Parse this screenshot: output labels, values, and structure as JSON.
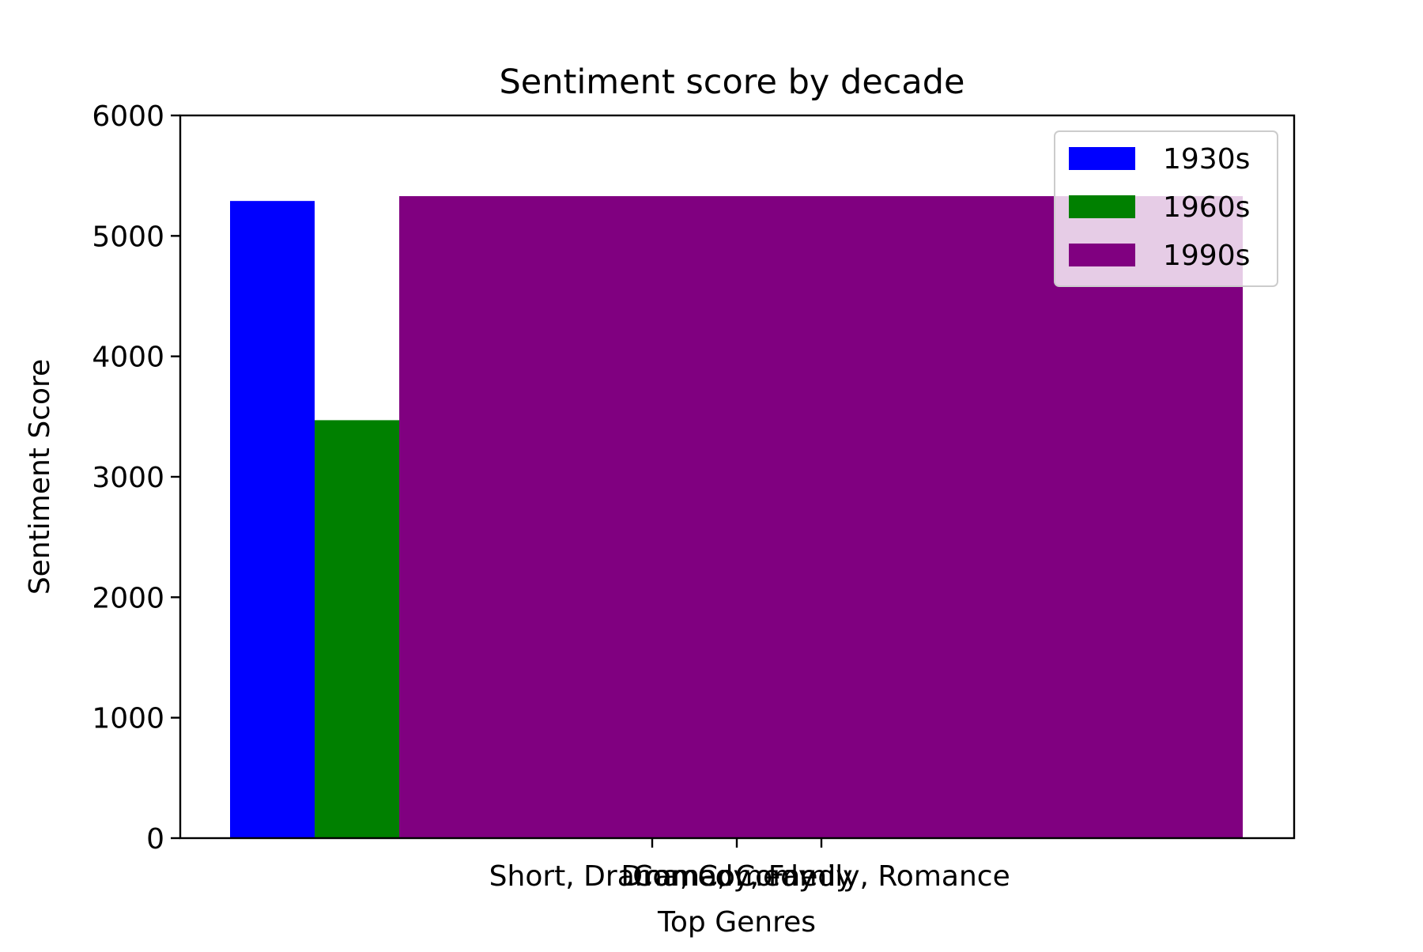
{
  "chart_data": {
    "type": "bar",
    "title": "Sentiment score by decade",
    "xlabel": "Top Genres",
    "ylabel": "Sentiment Score",
    "ylim": [
      0,
      6000
    ],
    "yticks": [
      "0",
      "1000",
      "2000",
      "3000",
      "4000",
      "5000",
      "6000"
    ],
    "xticks": [
      "Short, Drama, Comedy",
      "Drama, Comedy",
      "Comedy, Family, Romance"
    ],
    "grid": false,
    "legend_position": "top-right",
    "series": [
      {
        "name": "1930s",
        "value": 5290,
        "color": "#0000ff"
      },
      {
        "name": "1960s",
        "value": 3470,
        "color": "#008000"
      },
      {
        "name": "1990s",
        "value": 5330,
        "color": "#800080"
      }
    ]
  }
}
